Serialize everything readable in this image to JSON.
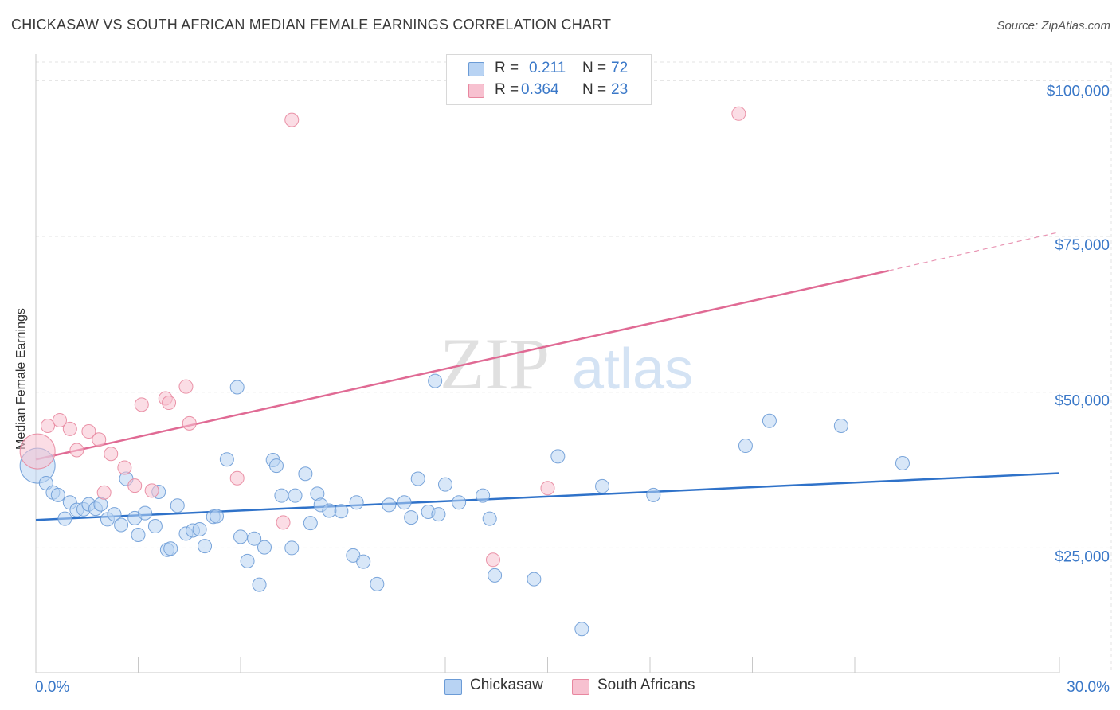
{
  "title": "CHICKASAW VS SOUTH AFRICAN MEDIAN FEMALE EARNINGS CORRELATION CHART",
  "source": "Source: ZipAtlas.com",
  "watermark": {
    "zip": "ZIP",
    "atlas": "atlas"
  },
  "legend": {
    "r_label": "R =",
    "n_label": "N =",
    "rows": [
      {
        "r": "0.211",
        "n": "72"
      },
      {
        "r": "0.364",
        "n": "23"
      }
    ]
  },
  "bottom_legend": [
    "Chickasaw",
    "South Africans"
  ],
  "colors": {
    "chickasaw_fill": "#b8d3f3",
    "chickasaw_stroke": "#6b9bd6",
    "chickasaw_line": "#2f72c9",
    "sa_fill": "#f7c1d0",
    "sa_stroke": "#e8879f",
    "sa_line": "#e06a94",
    "tick_label": "#3a78c8",
    "grid": "#e3e3e3"
  },
  "chart_data": {
    "type": "scatter",
    "title": "CHICKASAW VS SOUTH AFRICAN MEDIAN FEMALE EARNINGS CORRELATION CHART",
    "xlabel": "",
    "ylabel": "Median Female Earnings",
    "xlim": [
      0,
      30
    ],
    "ylim": [
      5000,
      104000
    ],
    "x_tick_labels": [
      "0.0%",
      "30.0%"
    ],
    "y_ticks": [
      25000,
      50000,
      75000,
      100000
    ],
    "y_tick_labels": [
      "$25,000",
      "$50,000",
      "$75,000",
      "$100,000"
    ],
    "grid": true,
    "legend_position": "top-center",
    "series": [
      {
        "name": "Chickasaw",
        "R": 0.211,
        "N": 72,
        "trend": {
          "x": [
            0,
            30
          ],
          "y": [
            29500,
            37000
          ]
        },
        "points": [
          {
            "x": 0.05,
            "y": 38200,
            "big": true
          },
          {
            "x": 0.3,
            "y": 35400
          },
          {
            "x": 0.5,
            "y": 33900
          },
          {
            "x": 0.65,
            "y": 33500
          },
          {
            "x": 0.85,
            "y": 29700
          },
          {
            "x": 1.0,
            "y": 32300
          },
          {
            "x": 1.2,
            "y": 31100
          },
          {
            "x": 1.4,
            "y": 31200
          },
          {
            "x": 1.55,
            "y": 32000
          },
          {
            "x": 1.75,
            "y": 31300
          },
          {
            "x": 1.9,
            "y": 32000
          },
          {
            "x": 2.1,
            "y": 29600
          },
          {
            "x": 2.3,
            "y": 30400
          },
          {
            "x": 2.5,
            "y": 28700
          },
          {
            "x": 2.65,
            "y": 36100
          },
          {
            "x": 2.9,
            "y": 29800
          },
          {
            "x": 3.0,
            "y": 27100
          },
          {
            "x": 3.2,
            "y": 30600
          },
          {
            "x": 3.5,
            "y": 28500
          },
          {
            "x": 3.6,
            "y": 34000
          },
          {
            "x": 3.85,
            "y": 24700
          },
          {
            "x": 3.95,
            "y": 24900
          },
          {
            "x": 4.15,
            "y": 31800
          },
          {
            "x": 4.4,
            "y": 27300
          },
          {
            "x": 4.6,
            "y": 27800
          },
          {
            "x": 4.8,
            "y": 28000
          },
          {
            "x": 4.95,
            "y": 25300
          },
          {
            "x": 5.2,
            "y": 30000
          },
          {
            "x": 5.3,
            "y": 30100
          },
          {
            "x": 5.6,
            "y": 39200
          },
          {
            "x": 5.9,
            "y": 50800
          },
          {
            "x": 6.0,
            "y": 26800
          },
          {
            "x": 6.2,
            "y": 22900
          },
          {
            "x": 6.4,
            "y": 26500
          },
          {
            "x": 6.55,
            "y": 19100
          },
          {
            "x": 6.7,
            "y": 25100
          },
          {
            "x": 6.95,
            "y": 39100
          },
          {
            "x": 7.05,
            "y": 38200
          },
          {
            "x": 7.2,
            "y": 33400
          },
          {
            "x": 7.5,
            "y": 25000
          },
          {
            "x": 7.6,
            "y": 33400
          },
          {
            "x": 7.9,
            "y": 36900
          },
          {
            "x": 8.05,
            "y": 29000
          },
          {
            "x": 8.25,
            "y": 33700
          },
          {
            "x": 8.35,
            "y": 31900
          },
          {
            "x": 8.95,
            "y": 30900
          },
          {
            "x": 8.6,
            "y": 31000
          },
          {
            "x": 9.3,
            "y": 23800
          },
          {
            "x": 9.6,
            "y": 22800
          },
          {
            "x": 9.4,
            "y": 32300
          },
          {
            "x": 10.0,
            "y": 19200
          },
          {
            "x": 10.35,
            "y": 31900
          },
          {
            "x": 10.8,
            "y": 32300
          },
          {
            "x": 11.0,
            "y": 29900
          },
          {
            "x": 11.2,
            "y": 36100
          },
          {
            "x": 11.5,
            "y": 30800
          },
          {
            "x": 11.8,
            "y": 30400
          },
          {
            "x": 11.7,
            "y": 51800
          },
          {
            "x": 12.0,
            "y": 35200
          },
          {
            "x": 12.4,
            "y": 32300
          },
          {
            "x": 13.1,
            "y": 33400
          },
          {
            "x": 13.3,
            "y": 29700
          },
          {
            "x": 13.45,
            "y": 20600
          },
          {
            "x": 14.6,
            "y": 20000
          },
          {
            "x": 15.3,
            "y": 39700
          },
          {
            "x": 16.0,
            "y": 12000
          },
          {
            "x": 16.6,
            "y": 34900
          },
          {
            "x": 18.1,
            "y": 33500
          },
          {
            "x": 20.8,
            "y": 41400
          },
          {
            "x": 21.5,
            "y": 45400
          },
          {
            "x": 23.6,
            "y": 44600
          },
          {
            "x": 25.4,
            "y": 38600
          }
        ]
      },
      {
        "name": "South Africans",
        "R": 0.364,
        "N": 23,
        "trend": {
          "x": [
            0,
            25
          ],
          "y": [
            39200,
            69500
          ]
        },
        "trend_dashed": {
          "x": [
            25,
            30
          ],
          "y": [
            69500,
            75700
          ]
        },
        "points": [
          {
            "x": 0.05,
            "y": 40500,
            "big": true
          },
          {
            "x": 0.35,
            "y": 44600
          },
          {
            "x": 0.7,
            "y": 45500
          },
          {
            "x": 1.0,
            "y": 44100
          },
          {
            "x": 1.2,
            "y": 40700
          },
          {
            "x": 1.55,
            "y": 43700
          },
          {
            "x": 1.85,
            "y": 42400
          },
          {
            "x": 2.0,
            "y": 33900
          },
          {
            "x": 2.2,
            "y": 40100
          },
          {
            "x": 2.6,
            "y": 37900
          },
          {
            "x": 2.9,
            "y": 35000
          },
          {
            "x": 3.1,
            "y": 48000
          },
          {
            "x": 3.4,
            "y": 34200
          },
          {
            "x": 3.8,
            "y": 49000
          },
          {
            "x": 3.9,
            "y": 48300
          },
          {
            "x": 4.4,
            "y": 50900
          },
          {
            "x": 4.5,
            "y": 45000
          },
          {
            "x": 5.9,
            "y": 36200
          },
          {
            "x": 7.25,
            "y": 29100
          },
          {
            "x": 7.5,
            "y": 93700
          },
          {
            "x": 13.4,
            "y": 23100
          },
          {
            "x": 15.0,
            "y": 34600
          },
          {
            "x": 20.6,
            "y": 94700
          }
        ]
      }
    ]
  }
}
